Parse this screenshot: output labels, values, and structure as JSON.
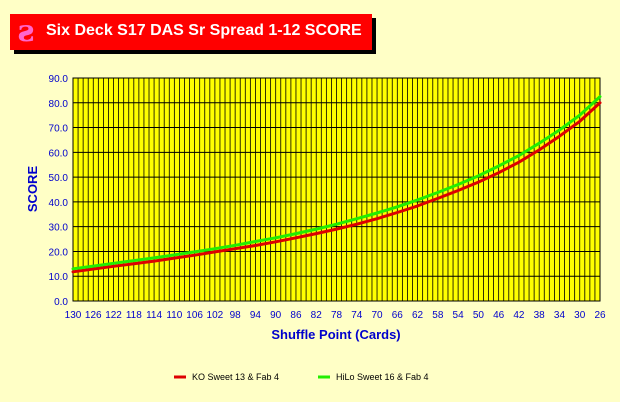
{
  "chart_data": {
    "type": "line",
    "title": "Six Deck S17 DAS Sr Spread 1-12 SCORE",
    "xlabel": "Shuffle Point (Cards)",
    "ylabel": "SCORE",
    "ylim": [
      0,
      90
    ],
    "y_ticks": [
      "0.0",
      "10.0",
      "20.0",
      "30.0",
      "40.0",
      "50.0",
      "60.0",
      "70.0",
      "80.0",
      "90.0"
    ],
    "x_ticks": [
      "130",
      "126",
      "122",
      "118",
      "114",
      "110",
      "106",
      "102",
      "98",
      "94",
      "90",
      "86",
      "82",
      "78",
      "74",
      "70",
      "66",
      "62",
      "58",
      "54",
      "50",
      "46",
      "42",
      "38",
      "34",
      "30",
      "26"
    ],
    "x": [
      130,
      126,
      122,
      118,
      114,
      110,
      106,
      102,
      98,
      94,
      90,
      86,
      82,
      78,
      74,
      70,
      66,
      62,
      58,
      54,
      50,
      46,
      42,
      38,
      34,
      30,
      26
    ],
    "grid": true,
    "legend_position": "bottom",
    "series": [
      {
        "name": "KO Sweet 13 & Fab 4",
        "color": "#dd0000",
        "values": [
          11.8,
          12.9,
          14.0,
          15.0,
          16.1,
          17.3,
          18.5,
          19.8,
          21.1,
          22.4,
          23.9,
          25.5,
          27.2,
          29.0,
          31.0,
          33.2,
          35.7,
          38.4,
          41.4,
          44.6,
          48.0,
          51.8,
          56.0,
          61.0,
          66.5,
          72.5,
          80.0
        ]
      },
      {
        "name": "HiLo Sweet 16 & Fab 4",
        "color": "#22ee00",
        "values": [
          13.0,
          14.1,
          15.2,
          16.3,
          17.4,
          18.6,
          19.8,
          21.1,
          22.5,
          24.0,
          25.5,
          27.2,
          29.0,
          31.0,
          33.2,
          35.5,
          38.0,
          40.8,
          43.8,
          47.0,
          50.5,
          54.5,
          58.7,
          63.7,
          69.0,
          75.0,
          82.5
        ]
      }
    ]
  }
}
